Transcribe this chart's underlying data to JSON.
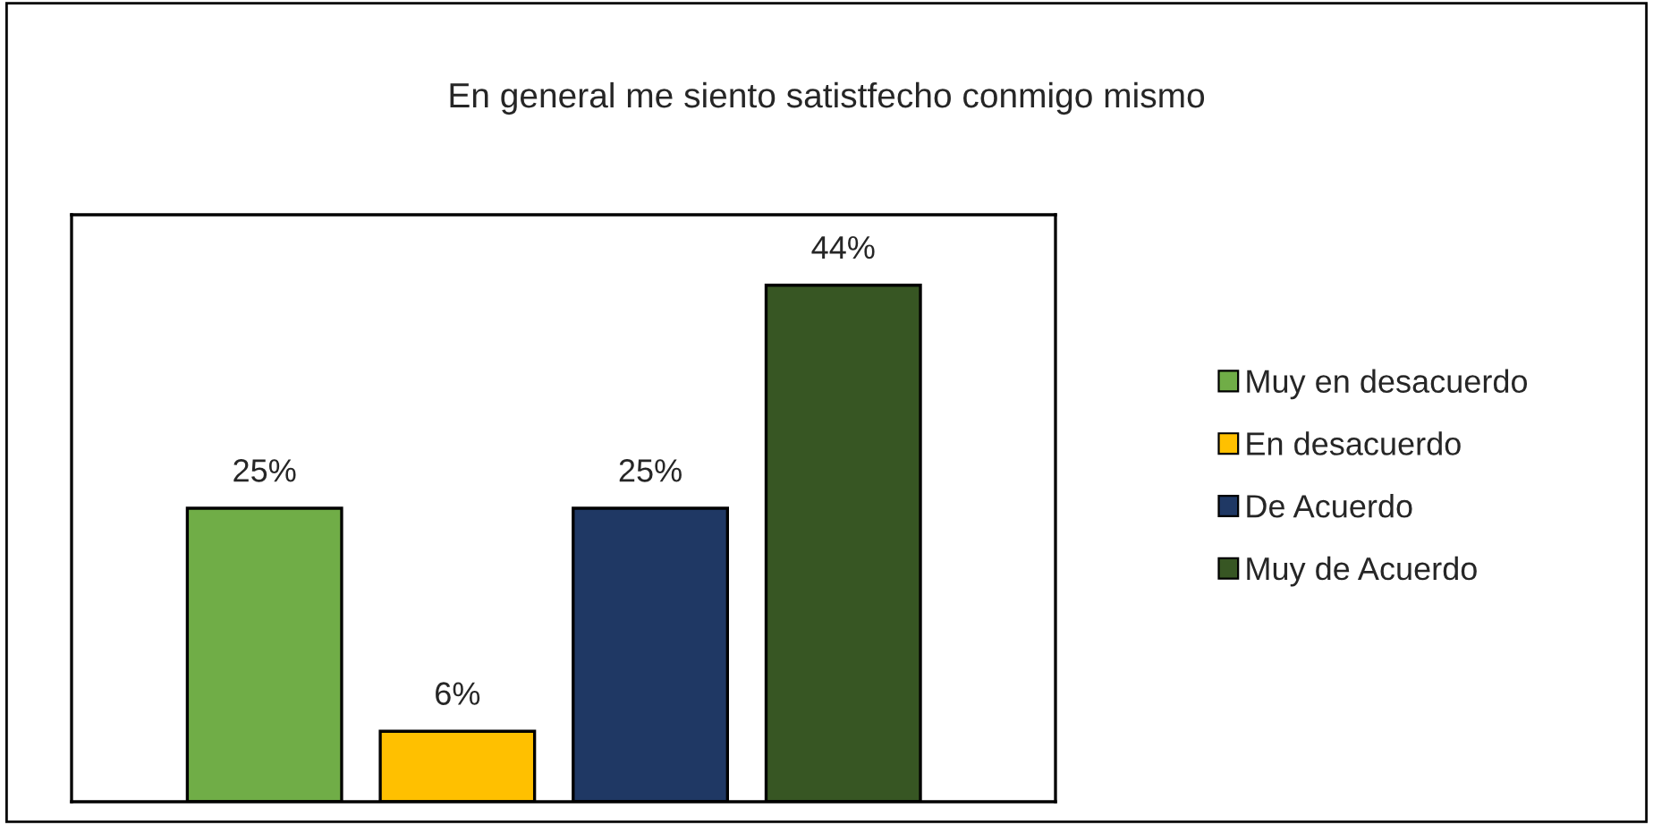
{
  "chart_data": {
    "type": "bar",
    "title": "En general me siento satistfecho conmigo mismo",
    "categories": [
      null,
      null,
      null,
      null
    ],
    "series": [
      {
        "name": "Muy en desacuerdo",
        "color": "#70ad47",
        "values": [
          25,
          null,
          null,
          null
        ],
        "value_labels": [
          "25%",
          null,
          null,
          null
        ]
      },
      {
        "name": "En desacuerdo",
        "color": "#ffc000",
        "values": [
          null,
          6,
          null,
          null
        ],
        "value_labels": [
          null,
          "6%",
          null,
          null
        ]
      },
      {
        "name": "De Acuerdo",
        "color": "#1f3864",
        "values": [
          null,
          null,
          25,
          null
        ],
        "value_labels": [
          null,
          null,
          "25%",
          null
        ]
      },
      {
        "name": "Muy de Acuerdo",
        "color": "#375623",
        "values": [
          null,
          null,
          null,
          44
        ],
        "value_labels": [
          null,
          null,
          null,
          "44%"
        ]
      }
    ],
    "stacked": true,
    "ylim": [
      0,
      50
    ],
    "tick_labels": false,
    "grid": false,
    "legend": "right"
  }
}
